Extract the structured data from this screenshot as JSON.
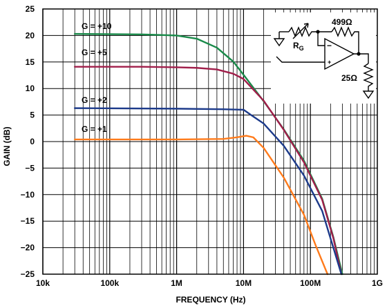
{
  "chart_data": {
    "type": "line",
    "xlabel": "FREQUENCY (Hz)",
    "ylabel": "GAIN (dB)",
    "xscale": "log",
    "xlim": [
      10000,
      1000000000
    ],
    "ylim": [
      -25,
      25
    ],
    "grid": true,
    "x_tick_labels": [
      "10k",
      "100k",
      "1M",
      "10M",
      "100M",
      "1G"
    ],
    "y_tick_labels": [
      "25",
      "20",
      "15",
      "10",
      "5",
      "0",
      "−5",
      "−10",
      "−15",
      "−20",
      "−25"
    ],
    "series": [
      {
        "name": "G = +10",
        "color": "#1a8a4a",
        "points": [
          [
            30000,
            20.3
          ],
          [
            300000,
            20.2
          ],
          [
            1000000,
            20.0
          ],
          [
            2000000,
            19.4
          ],
          [
            4000000,
            17.7
          ],
          [
            7000000,
            15.1
          ],
          [
            10000000,
            12.6
          ],
          [
            20000000,
            7.6
          ],
          [
            40000000,
            2.3
          ],
          [
            80000000,
            -3.6
          ],
          [
            150000000,
            -10.8
          ],
          [
            220000000,
            -18.0
          ],
          [
            300000000,
            -25.0
          ]
        ]
      },
      {
        "name": "G = +5",
        "color": "#a01e4a",
        "points": [
          [
            30000,
            14.1
          ],
          [
            300000,
            14.1
          ],
          [
            1000000,
            14.0
          ],
          [
            2000000,
            13.9
          ],
          [
            4000000,
            13.6
          ],
          [
            7000000,
            12.8
          ],
          [
            10000000,
            11.8
          ],
          [
            20000000,
            7.7
          ],
          [
            40000000,
            2.2
          ],
          [
            80000000,
            -3.9
          ],
          [
            150000000,
            -11.0
          ],
          [
            220000000,
            -18.2
          ],
          [
            290000000,
            -25.0
          ]
        ]
      },
      {
        "name": "G = +2",
        "color": "#1c3a8a",
        "points": [
          [
            30000,
            6.3
          ],
          [
            1000000,
            6.2
          ],
          [
            5000000,
            6.1
          ],
          [
            10000000,
            6.0
          ],
          [
            13000000,
            5.0
          ],
          [
            20000000,
            3.4
          ],
          [
            40000000,
            -0.8
          ],
          [
            80000000,
            -6.4
          ],
          [
            150000000,
            -13.1
          ],
          [
            220000000,
            -20.0
          ],
          [
            290000000,
            -25.0
          ]
        ]
      },
      {
        "name": "G = +1",
        "color": "#ff7a1a",
        "points": [
          [
            30000,
            0.4
          ],
          [
            1000000,
            0.4
          ],
          [
            5000000,
            0.5
          ],
          [
            8000000,
            0.8
          ],
          [
            11000000,
            1.1
          ],
          [
            14000000,
            0.8
          ],
          [
            20000000,
            -1.2
          ],
          [
            40000000,
            -6.8
          ],
          [
            80000000,
            -13.8
          ],
          [
            120000000,
            -19.6
          ],
          [
            180000000,
            -25.0
          ]
        ]
      }
    ],
    "annotations": {
      "series_labels": [
        "G = +10",
        "G = +5",
        "G = +2",
        "G = +1"
      ],
      "schematic": {
        "feedback_resistor": "499Ω",
        "gain_resistor": "R",
        "gain_resistor_subscript": "G",
        "load_resistor": "25Ω",
        "inverting_input": "−",
        "noninverting_input": "+"
      }
    }
  }
}
